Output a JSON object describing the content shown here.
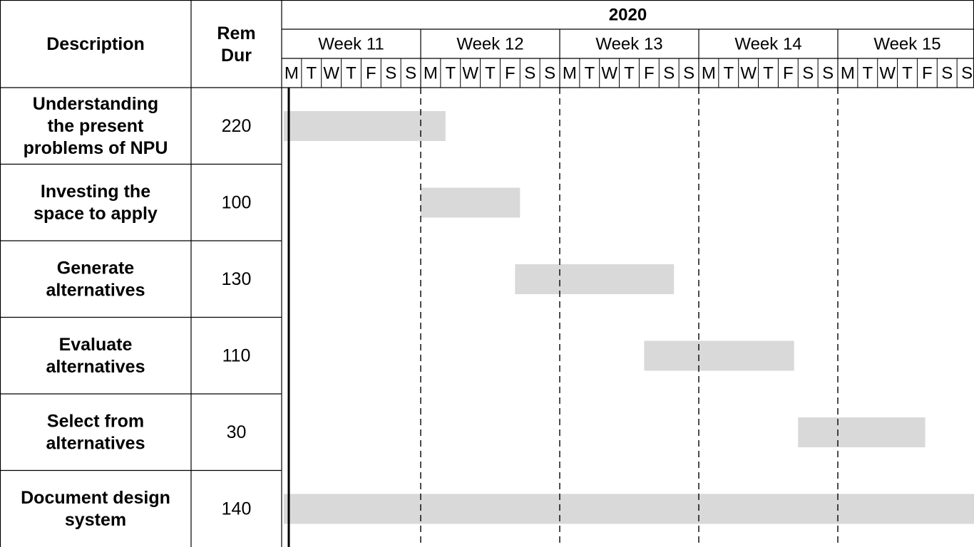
{
  "chart_data": {
    "type": "gantt",
    "columns": {
      "description": "Description",
      "rem_dur_line1": "Rem",
      "rem_dur_line2": "Dur"
    },
    "year": "2020",
    "weeks": [
      "Week 11",
      "Week 12",
      "Week 13",
      "Week 14",
      "Week 15"
    ],
    "day_letters": [
      "M",
      "T",
      "W",
      "T",
      "F",
      "S",
      "S"
    ],
    "tasks": [
      {
        "label_lines": [
          "Understanding",
          "the present",
          "problems of NPU"
        ],
        "rem_dur": "220",
        "start_day": 0.1,
        "end_day": 8.25
      },
      {
        "label_lines": [
          "Investing the",
          "space to apply"
        ],
        "rem_dur": "100",
        "start_day": 7.0,
        "end_day": 12.0
      },
      {
        "label_lines": [
          "Generate",
          "alternatives"
        ],
        "rem_dur": "130",
        "start_day": 11.75,
        "end_day": 19.75
      },
      {
        "label_lines": [
          "Evaluate",
          "alternatives"
        ],
        "rem_dur": "110",
        "start_day": 18.25,
        "end_day": 25.8
      },
      {
        "label_lines": [
          "Select from",
          "alternatives"
        ],
        "rem_dur": "30",
        "start_day": 26.0,
        "end_day": 32.4
      },
      {
        "label_lines": [
          "Document design",
          "system"
        ],
        "rem_dur": "140",
        "start_day": 0.1,
        "end_day": 35.0
      }
    ],
    "bar_color": "#d9d9d9",
    "line_color": "#000000"
  }
}
